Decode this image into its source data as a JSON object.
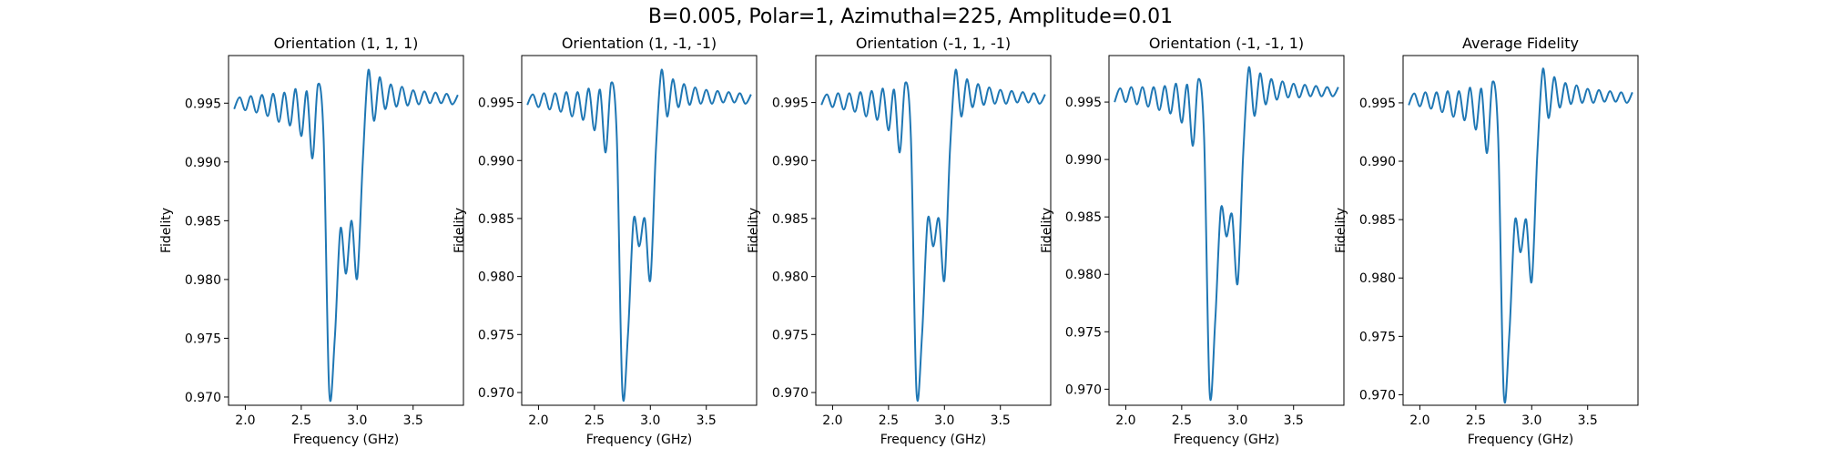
{
  "figure": {
    "suptitle": "B=0.005, Polar=1, Azimuthal=225, Amplitude=0.01",
    "line_color": "#1f77b4"
  },
  "chart_data": [
    {
      "type": "line",
      "title": "Orientation (1, 1, 1)",
      "xlabel": "Frequency (GHz)",
      "ylabel": "Fidelity",
      "xlim": [
        1.85,
        3.95
      ],
      "ylim": [
        0.9693,
        0.99905
      ],
      "xticks": [
        2.0,
        2.5,
        3.0,
        3.5
      ],
      "yticks": [
        0.97,
        0.975,
        0.98,
        0.985,
        0.99,
        0.995
      ],
      "grid": false,
      "series": [
        {
          "line_color": "#1f77b4",
          "x": [
            1.9,
            1.95,
            2.0,
            2.05,
            2.1,
            2.15,
            2.2,
            2.25,
            2.3,
            2.35,
            2.4,
            2.45,
            2.5,
            2.55,
            2.6,
            2.65,
            2.7,
            2.75,
            2.8,
            2.85,
            2.9,
            2.95,
            3.0,
            3.05,
            3.1,
            3.15,
            3.2,
            3.25,
            3.3,
            3.35,
            3.4,
            3.45,
            3.5,
            3.55,
            3.6,
            3.65,
            3.7,
            3.75,
            3.8,
            3.85,
            3.9
          ],
          "y": [
            0.9945,
            0.9955,
            0.9944,
            0.9956,
            0.9942,
            0.9957,
            0.9939,
            0.9958,
            0.9934,
            0.9959,
            0.9931,
            0.9962,
            0.9922,
            0.996,
            0.9903,
            0.9966,
            0.992,
            0.9705,
            0.975,
            0.9843,
            0.9805,
            0.985,
            0.9801,
            0.99,
            0.9978,
            0.9935,
            0.9972,
            0.9945,
            0.9966,
            0.9947,
            0.9964,
            0.9948,
            0.9961,
            0.9949,
            0.996,
            0.995,
            0.9959,
            0.995,
            0.9958,
            0.9949,
            0.9957
          ]
        }
      ]
    },
    {
      "type": "line",
      "title": "Orientation (1, -1, -1)",
      "xlabel": "Frequency (GHz)",
      "ylabel": "Fidelity",
      "xlim": [
        1.85,
        3.95
      ],
      "ylim": [
        0.9689,
        0.99905
      ],
      "xticks": [
        2.0,
        2.5,
        3.0,
        3.5
      ],
      "yticks": [
        0.97,
        0.975,
        0.98,
        0.985,
        0.99,
        0.995
      ],
      "grid": false,
      "series": [
        {
          "line_color": "#1f77b4",
          "x": [
            1.9,
            1.95,
            2.0,
            2.05,
            2.1,
            2.15,
            2.2,
            2.25,
            2.3,
            2.35,
            2.4,
            2.45,
            2.5,
            2.55,
            2.6,
            2.65,
            2.7,
            2.75,
            2.8,
            2.85,
            2.9,
            2.95,
            3.0,
            3.05,
            3.1,
            3.15,
            3.2,
            3.25,
            3.3,
            3.35,
            3.4,
            3.45,
            3.5,
            3.55,
            3.6,
            3.65,
            3.7,
            3.75,
            3.8,
            3.85,
            3.9
          ],
          "y": [
            0.9948,
            0.9957,
            0.9946,
            0.9958,
            0.9944,
            0.9958,
            0.9942,
            0.9959,
            0.9938,
            0.9959,
            0.9935,
            0.9962,
            0.9926,
            0.9961,
            0.9907,
            0.9967,
            0.992,
            0.9701,
            0.975,
            0.9849,
            0.9826,
            0.985,
            0.9797,
            0.991,
            0.9978,
            0.9938,
            0.997,
            0.9946,
            0.9966,
            0.9948,
            0.9963,
            0.9949,
            0.9961,
            0.9949,
            0.996,
            0.995,
            0.9959,
            0.995,
            0.9958,
            0.9949,
            0.9957
          ]
        }
      ]
    },
    {
      "type": "line",
      "title": "Orientation (-1, 1, -1)",
      "xlabel": "Frequency (GHz)",
      "ylabel": "Fidelity",
      "xlim": [
        1.85,
        3.95
      ],
      "ylim": [
        0.9689,
        0.99905
      ],
      "xticks": [
        2.0,
        2.5,
        3.0,
        3.5
      ],
      "yticks": [
        0.97,
        0.975,
        0.98,
        0.985,
        0.99,
        0.995
      ],
      "grid": false,
      "series": [
        {
          "line_color": "#1f77b4",
          "x": [
            1.9,
            1.95,
            2.0,
            2.05,
            2.1,
            2.15,
            2.2,
            2.25,
            2.3,
            2.35,
            2.4,
            2.45,
            2.5,
            2.55,
            2.6,
            2.65,
            2.7,
            2.75,
            2.8,
            2.85,
            2.9,
            2.95,
            3.0,
            3.05,
            3.1,
            3.15,
            3.2,
            3.25,
            3.3,
            3.35,
            3.4,
            3.45,
            3.5,
            3.55,
            3.6,
            3.65,
            3.7,
            3.75,
            3.8,
            3.85,
            3.9
          ],
          "y": [
            0.9948,
            0.9957,
            0.9946,
            0.9958,
            0.9944,
            0.9958,
            0.9942,
            0.9959,
            0.9938,
            0.996,
            0.9935,
            0.9962,
            0.9926,
            0.9961,
            0.9907,
            0.9967,
            0.992,
            0.9701,
            0.975,
            0.9849,
            0.9826,
            0.985,
            0.9797,
            0.991,
            0.9978,
            0.9938,
            0.997,
            0.9946,
            0.9966,
            0.9948,
            0.9963,
            0.9949,
            0.9961,
            0.9949,
            0.996,
            0.995,
            0.9959,
            0.995,
            0.9958,
            0.9949,
            0.9957
          ]
        }
      ]
    },
    {
      "type": "line",
      "title": "Orientation (-1, -1, 1)",
      "xlabel": "Frequency (GHz)",
      "ylabel": "Fidelity",
      "xlim": [
        1.85,
        3.95
      ],
      "ylim": [
        0.9686,
        0.99905
      ],
      "xticks": [
        2.0,
        2.5,
        3.0,
        3.5
      ],
      "yticks": [
        0.97,
        0.975,
        0.98,
        0.985,
        0.99,
        0.995
      ],
      "grid": false,
      "series": [
        {
          "line_color": "#1f77b4",
          "x": [
            1.9,
            1.95,
            2.0,
            2.05,
            2.1,
            2.15,
            2.2,
            2.25,
            2.3,
            2.35,
            2.4,
            2.45,
            2.5,
            2.55,
            2.6,
            2.65,
            2.7,
            2.75,
            2.8,
            2.85,
            2.9,
            2.95,
            3.0,
            3.05,
            3.1,
            3.15,
            3.2,
            3.25,
            3.3,
            3.35,
            3.4,
            3.45,
            3.5,
            3.55,
            3.6,
            3.65,
            3.7,
            3.75,
            3.8,
            3.85,
            3.9
          ],
          "y": [
            0.995,
            0.9962,
            0.995,
            0.9963,
            0.9948,
            0.9963,
            0.9946,
            0.9963,
            0.9943,
            0.9964,
            0.994,
            0.9966,
            0.9932,
            0.9965,
            0.9912,
            0.997,
            0.992,
            0.9697,
            0.976,
            0.9857,
            0.9833,
            0.9852,
            0.9792,
            0.9905,
            0.998,
            0.9938,
            0.9975,
            0.9948,
            0.997,
            0.9952,
            0.9968,
            0.9954,
            0.9966,
            0.9954,
            0.9965,
            0.9955,
            0.9964,
            0.9955,
            0.9963,
            0.9955,
            0.9963
          ]
        }
      ]
    },
    {
      "type": "line",
      "title": "Average Fidelity",
      "xlabel": "Frequency (GHz)",
      "ylabel": "Fidelity",
      "xlim": [
        1.85,
        3.95
      ],
      "ylim": [
        0.9691,
        0.99905
      ],
      "xticks": [
        2.0,
        2.5,
        3.0,
        3.5
      ],
      "yticks": [
        0.97,
        0.975,
        0.98,
        0.985,
        0.99,
        0.995
      ],
      "grid": false,
      "series": [
        {
          "line_color": "#1f77b4",
          "x": [
            1.9,
            1.95,
            2.0,
            2.05,
            2.1,
            2.15,
            2.2,
            2.25,
            2.3,
            2.35,
            2.4,
            2.45,
            2.5,
            2.55,
            2.6,
            2.65,
            2.7,
            2.75,
            2.8,
            2.85,
            2.9,
            2.95,
            3.0,
            3.05,
            3.1,
            3.15,
            3.2,
            3.25,
            3.3,
            3.35,
            3.4,
            3.45,
            3.5,
            3.55,
            3.6,
            3.65,
            3.7,
            3.75,
            3.8,
            3.85,
            3.9
          ],
          "y": [
            0.9948,
            0.9958,
            0.9947,
            0.9959,
            0.9945,
            0.9959,
            0.9942,
            0.996,
            0.9938,
            0.996,
            0.9935,
            0.9963,
            0.9927,
            0.9962,
            0.9907,
            0.9968,
            0.992,
            0.9701,
            0.9752,
            0.9849,
            0.9822,
            0.985,
            0.9797,
            0.9906,
            0.9979,
            0.9937,
            0.9972,
            0.9946,
            0.9967,
            0.9949,
            0.9965,
            0.995,
            0.9962,
            0.995,
            0.9961,
            0.9951,
            0.996,
            0.9951,
            0.9959,
            0.995,
            0.9959
          ]
        }
      ]
    }
  ]
}
